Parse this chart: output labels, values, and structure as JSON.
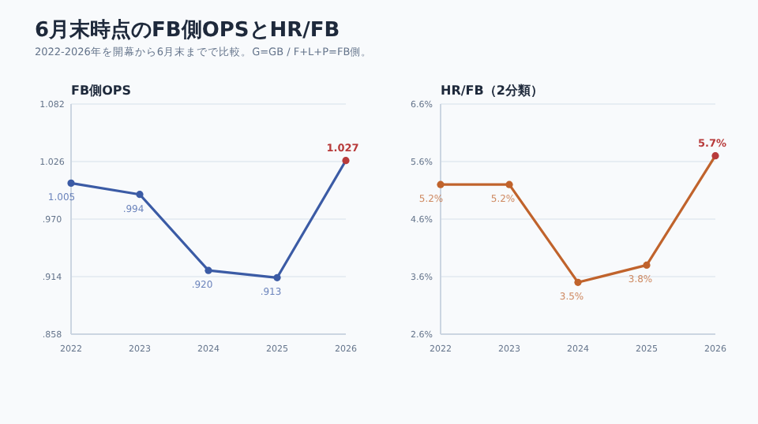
{
  "chart_data": [
    {
      "type": "line",
      "title": "FB側OPS",
      "annotations": [
        "6月末時点のFB側OPSとHR/FB",
        "2022-2026年を開幕から6月末までで比較。G=GB / F+L+P=FB側。"
      ],
      "categories": [
        "2022",
        "2023",
        "2024",
        "2025",
        "2026"
      ],
      "series": [
        {
          "color": "#3b5ba5",
          "colors": [
            "#3b5ba5",
            "#3b5ba5",
            "#3b5ba5",
            "#3b5ba5",
            "#b83b3b"
          ],
          "values": [
            1.005,
            0.994,
            0.92,
            0.913,
            1.027
          ],
          "value_labels": [
            "1.005",
            ".994",
            ".920",
            ".913",
            "1.027"
          ]
        }
      ],
      "ylim": [
        0.858,
        1.082
      ],
      "yticks": [
        {
          "value": 0.858,
          "label": ".858"
        },
        {
          "value": 0.914,
          "label": ".914"
        },
        {
          "value": 0.97,
          "label": ".970"
        },
        1.026,
        1.082
      ],
      "grid": "y",
      "marker": "circle",
      "line_style": "solid"
    },
    {
      "type": "line",
      "title": "HR/FB（2分類）",
      "categories": [
        "2022",
        "2023",
        "2024",
        "2025",
        "2026"
      ],
      "series": [
        {
          "color": "#c0632c",
          "colors": [
            "#c0632c",
            "#c0632c",
            "#c0632c",
            "#c0632c",
            "#b83b3b"
          ],
          "values": [
            5.2,
            5.2,
            3.5,
            3.8,
            5.7
          ],
          "value_labels": [
            "5.2%",
            "5.2%",
            "3.5%",
            "3.8%",
            "5.7%"
          ]
        }
      ],
      "ylim": [
        2.6,
        6.6
      ],
      "yticks": [
        {
          "value": 2.6,
          "label": "2.6%"
        },
        {
          "value": 3.6,
          "label": "3.6%"
        },
        {
          "value": 4.6,
          "label": "4.6%"
        },
        {
          "value": 5.6,
          "label": "5.6%"
        },
        {
          "value": 6.6,
          "label": "6.6%"
        }
      ],
      "grid": "y",
      "marker": "circle",
      "line_style": "solid"
    }
  ]
}
